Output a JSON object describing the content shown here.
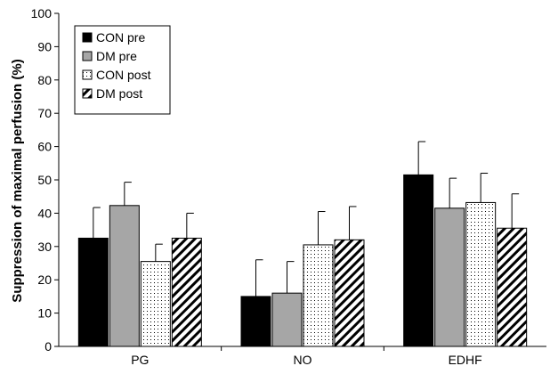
{
  "chart_data": {
    "type": "bar",
    "title": "",
    "xlabel": "",
    "ylabel": "Suppression of maximal perfusion (%)",
    "ylim": [
      0,
      100
    ],
    "ytick_step": 10,
    "grid": false,
    "legend_position": "top-left",
    "categories": [
      "PG",
      "NO",
      "EDHF"
    ],
    "series": [
      {
        "name": "CON pre",
        "values": [
          32.5,
          15,
          51.5
        ],
        "errors": [
          9.2,
          11,
          10
        ],
        "fill": "solid-black"
      },
      {
        "name": "DM pre",
        "values": [
          42.3,
          16,
          41.5
        ],
        "errors": [
          7,
          9.5,
          9
        ],
        "fill": "solid-gray"
      },
      {
        "name": "CON post",
        "values": [
          25.5,
          30.5,
          43.2
        ],
        "errors": [
          5.2,
          10,
          8.8
        ],
        "fill": "dotted"
      },
      {
        "name": "DM post",
        "values": [
          32.5,
          32,
          35.5
        ],
        "errors": [
          7.5,
          10,
          10.3
        ],
        "fill": "diagonal-hatch"
      }
    ],
    "colors": {
      "solid-black": "#000000",
      "solid-gray": "#a6a6a6",
      "stroke": "#000000"
    }
  }
}
